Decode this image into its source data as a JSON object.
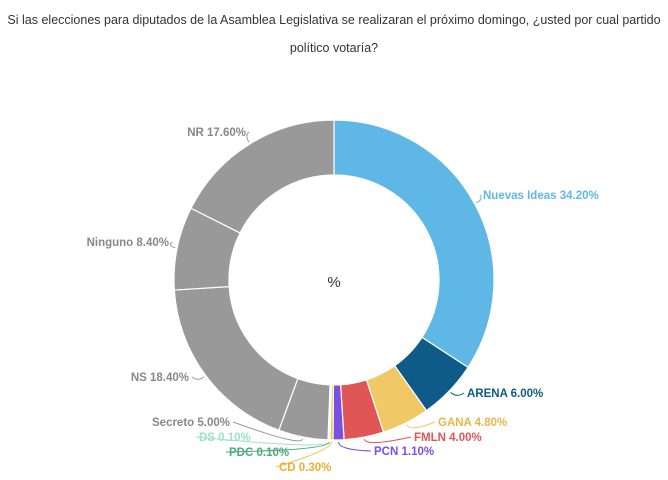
{
  "title": {
    "line1": "Si las elecciones para diputados de la Asamblea Legislativa se realizaran el próximo domingo, ¿usted por cual partido",
    "line2": "político votaría?"
  },
  "chart_data": {
    "type": "pie",
    "donut": true,
    "center_label": "%",
    "legend": "none",
    "slices": [
      {
        "name": "Nuevas Ideas",
        "value": 34.2,
        "label": "Nuevas Ideas 34.20%",
        "color": "#5fb7e5"
      },
      {
        "name": "ARENA",
        "value": 6.0,
        "label": "ARENA 6.00%",
        "color": "#0f5b87"
      },
      {
        "name": "GANA",
        "value": 4.8,
        "label": "GANA 4.80%",
        "color": "#f0c866"
      },
      {
        "name": "FMLN",
        "value": 4.0,
        "label": "FMLN 4.00%",
        "color": "#e05555"
      },
      {
        "name": "PCN",
        "value": 1.1,
        "label": "PCN 1.10%",
        "color": "#7b4fe0"
      },
      {
        "name": "CD",
        "value": 0.3,
        "label": "CD 0.30%",
        "color": "#f0c040"
      },
      {
        "name": "PDC",
        "value": 0.1,
        "label": "PDC 0.10%",
        "color": "#4aaa7a"
      },
      {
        "name": "DS",
        "value": 0.1,
        "label": "DS 0.10%",
        "color": "#9fe0c8"
      },
      {
        "name": "Secreto",
        "value": 5.0,
        "label": "Secreto 5.00%",
        "color": "#999999"
      },
      {
        "name": "NS",
        "value": 18.4,
        "label": "NS 18.40%",
        "color": "#999999"
      },
      {
        "name": "Ninguno",
        "value": 8.4,
        "label": "Ninguno 8.40%",
        "color": "#999999"
      },
      {
        "name": "NR",
        "value": 17.6,
        "label": "NR 17.60%",
        "color": "#999999"
      }
    ]
  }
}
